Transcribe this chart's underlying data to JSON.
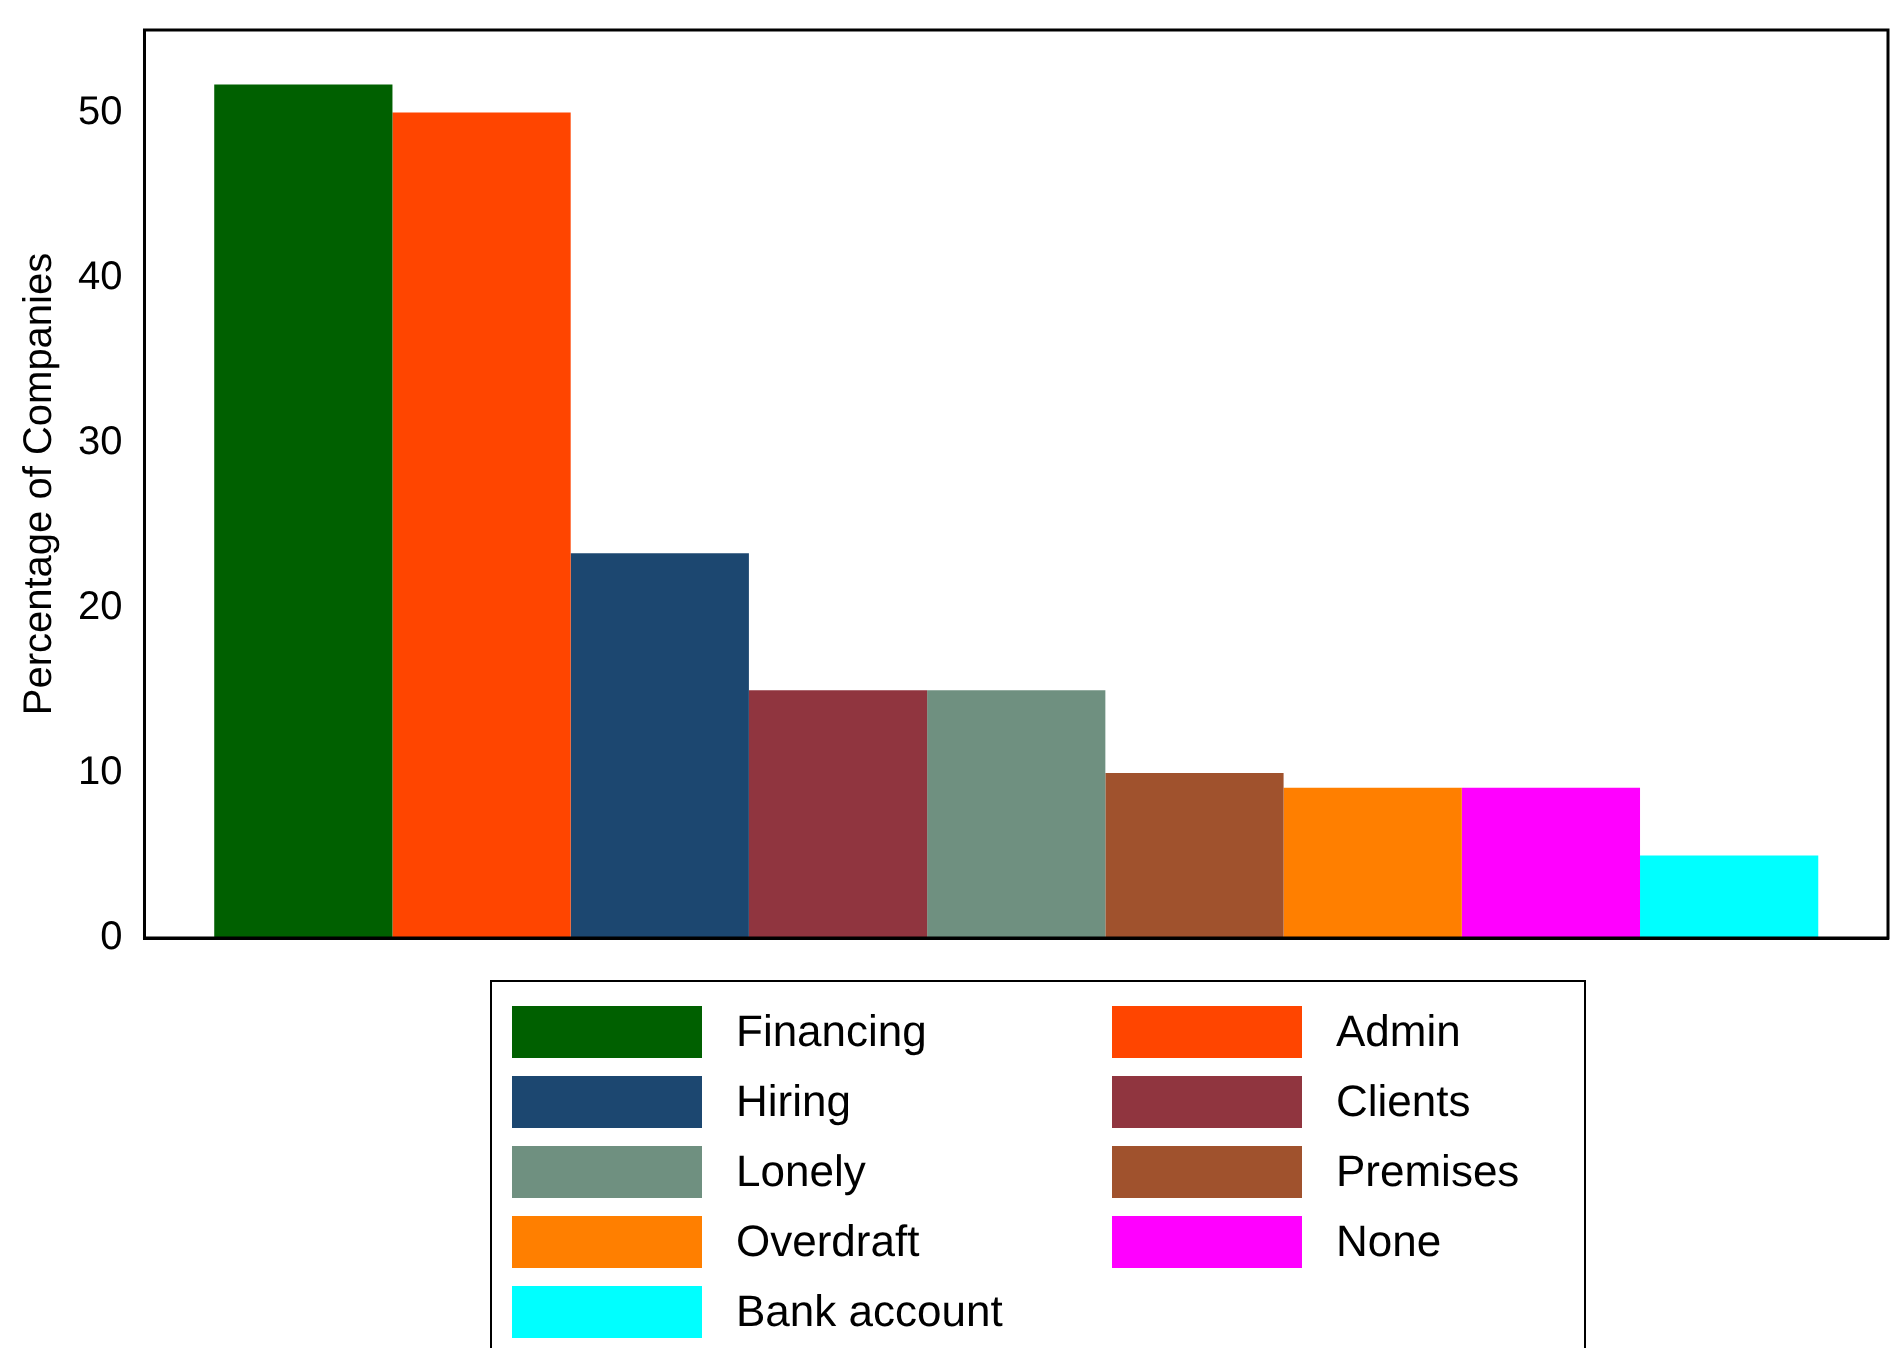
{
  "chart_data": {
    "type": "bar",
    "ylabel": "Percentage of Companies",
    "categories": [
      null
    ],
    "ylim": [
      0,
      55
    ],
    "yticks": [
      0,
      10,
      20,
      30,
      40,
      50
    ],
    "grid": false,
    "legend": "bottom",
    "tick_labels": "y",
    "series": [
      {
        "name": "Financing",
        "color": "#006000",
        "values": [
          51.7
        ]
      },
      {
        "name": "Admin",
        "color": "#ff4500",
        "values": [
          50
        ]
      },
      {
        "name": "Hiring",
        "color": "#1c4770",
        "values": [
          23.3
        ]
      },
      {
        "name": "Clients",
        "color": "#90353f",
        "values": [
          15
        ]
      },
      {
        "name": "Lonely",
        "color": "#6f9080",
        "values": [
          15
        ]
      },
      {
        "name": "Premises",
        "color": "#a0522d",
        "values": [
          10
        ]
      },
      {
        "name": "Overdraft",
        "color": "#ff7f00",
        "values": [
          9.1
        ]
      },
      {
        "name": "None",
        "color": "#ff00ff",
        "values": [
          9.1
        ]
      },
      {
        "name": "Bank account",
        "color": "#00ffff",
        "values": [
          5
        ]
      }
    ]
  }
}
